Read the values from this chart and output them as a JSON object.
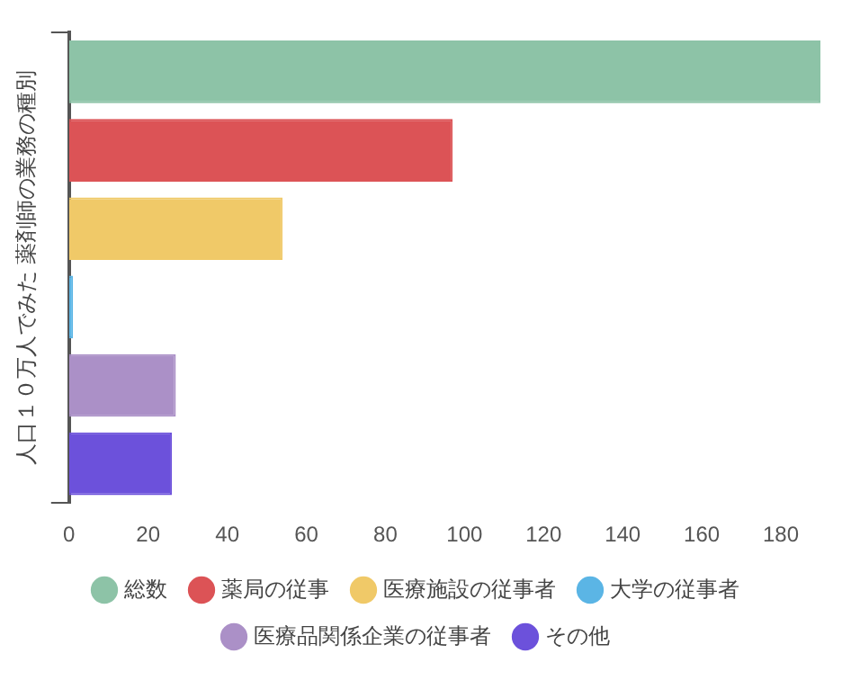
{
  "chart_data": {
    "type": "bar",
    "orientation": "horizontal",
    "ylabel": "人口１０万人でみた 薬剤師の業務の種別",
    "categories": [
      null
    ],
    "series": [
      {
        "name": "総数",
        "color": "#8dc3a7",
        "values": [
          190
        ]
      },
      {
        "name": "薬局の従事",
        "color": "#dc5356",
        "values": [
          97
        ]
      },
      {
        "name": "医療施設の従事者",
        "color": "#f0c968",
        "values": [
          54
        ]
      },
      {
        "name": "大学の従事者",
        "color": "#5bb5e5",
        "values": [
          1
        ]
      },
      {
        "name": "医療品関係企業の従事者",
        "color": "#ab90c7",
        "values": [
          27
        ]
      },
      {
        "name": "その他",
        "color": "#6c51db",
        "values": [
          26
        ]
      }
    ],
    "xlim": [
      0,
      190
    ],
    "xticks": [
      0,
      20,
      40,
      60,
      80,
      100,
      120,
      140,
      160,
      180
    ],
    "legend": "bottom"
  }
}
